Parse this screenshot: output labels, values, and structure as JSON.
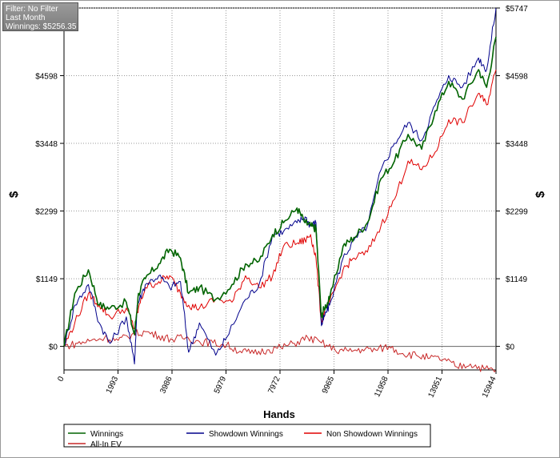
{
  "filter_box": {
    "filter_text": "Filter: No Filter",
    "period_text": "Last Month",
    "winnings_text": "Winnings: $5256.35"
  },
  "chart_data": {
    "type": "line",
    "xlabel": "Hands",
    "ylabel_left": "$",
    "ylabel_right": "$",
    "xlim": [
      0,
      15944
    ],
    "ylim": [
      -400,
      5747
    ],
    "x_ticks": [
      0,
      1993,
      3986,
      5979,
      7972,
      9965,
      11958,
      13951,
      15944
    ],
    "y_ticks": [
      0,
      1149,
      2299,
      3448,
      4598,
      5747
    ],
    "y_tick_labels": [
      "$0",
      "$1149",
      "$2299",
      "$3448",
      "$4598",
      "$5747"
    ],
    "grid": true,
    "legend_position": "bottom",
    "series": [
      {
        "name": "Winnings",
        "color": "#006400",
        "x": [
          0,
          400,
          900,
          1300,
          1700,
          2300,
          2600,
          2750,
          3000,
          3500,
          3900,
          4300,
          4600,
          5000,
          5600,
          6200,
          6700,
          7200,
          7700,
          8100,
          8600,
          8900,
          9100,
          9300,
          9500,
          9600,
          9800,
          10300,
          10700,
          11200,
          11700,
          12200,
          12700,
          13200,
          13700,
          14200,
          14700,
          15300,
          15600,
          15944
        ],
        "y": [
          0,
          900,
          1300,
          700,
          650,
          750,
          200,
          900,
          1150,
          1400,
          1650,
          1500,
          900,
          1000,
          800,
          1050,
          1400,
          1450,
          1900,
          2100,
          2350,
          2100,
          2050,
          2000,
          500,
          650,
          800,
          1700,
          1850,
          2100,
          2850,
          3150,
          3600,
          3350,
          4000,
          4500,
          4200,
          4700,
          4400,
          5256
        ]
      },
      {
        "name": "Showdown Winnings",
        "color": "#00008B",
        "x": [
          0,
          400,
          900,
          1300,
          1700,
          2300,
          2600,
          2700,
          3000,
          3500,
          3900,
          4300,
          4600,
          5000,
          5600,
          6000,
          6700,
          7200,
          7700,
          8100,
          8600,
          8900,
          9100,
          9300,
          9500,
          9600,
          9800,
          10300,
          10700,
          11200,
          11700,
          12200,
          12700,
          13200,
          13700,
          14200,
          14700,
          15300,
          15600,
          15944
        ],
        "y": [
          0,
          700,
          1050,
          400,
          50,
          500,
          -300,
          700,
          1050,
          1200,
          1000,
          1100,
          -100,
          400,
          -150,
          150,
          800,
          1050,
          1900,
          1950,
          2100,
          2200,
          2050,
          2100,
          350,
          500,
          700,
          1500,
          1800,
          2050,
          3000,
          3450,
          3800,
          3500,
          4100,
          4600,
          4400,
          4900,
          4700,
          5747
        ]
      },
      {
        "name": "Non Showdown Winnings",
        "color": "#E00000",
        "x": [
          0,
          400,
          900,
          1300,
          1700,
          2300,
          2600,
          2750,
          3000,
          3500,
          3900,
          4300,
          4600,
          5000,
          5600,
          6200,
          6700,
          7200,
          7700,
          8100,
          8600,
          8900,
          9100,
          9300,
          9500,
          9600,
          9800,
          10300,
          10700,
          11200,
          11700,
          12200,
          12700,
          13200,
          13700,
          14200,
          14700,
          15300,
          15600,
          15944
        ],
        "y": [
          0,
          400,
          900,
          700,
          500,
          650,
          300,
          650,
          1000,
          1100,
          1200,
          900,
          700,
          650,
          800,
          750,
          1200,
          1000,
          1200,
          1700,
          1750,
          1800,
          1900,
          1500,
          400,
          550,
          750,
          1300,
          1500,
          1600,
          2050,
          2500,
          3150,
          3000,
          3300,
          3850,
          3800,
          4300,
          4100,
          4700
        ]
      },
      {
        "name": "All-In EV",
        "color": "#C82828",
        "x": [
          0,
          500,
          1000,
          1500,
          2000,
          2500,
          3000,
          3500,
          4000,
          4500,
          5000,
          5500,
          6000,
          6500,
          7000,
          7500,
          8000,
          8500,
          9000,
          9500,
          10000,
          10500,
          11000,
          11500,
          12000,
          12500,
          13000,
          13500,
          14000,
          14500,
          15000,
          15500,
          15944
        ],
        "y": [
          0,
          50,
          100,
          150,
          100,
          200,
          250,
          180,
          120,
          150,
          80,
          60,
          20,
          -80,
          -120,
          -60,
          -20,
          50,
          150,
          60,
          -60,
          -80,
          -50,
          -60,
          0,
          -120,
          -150,
          -200,
          -220,
          -350,
          -300,
          -380,
          -400
        ]
      }
    ]
  }
}
